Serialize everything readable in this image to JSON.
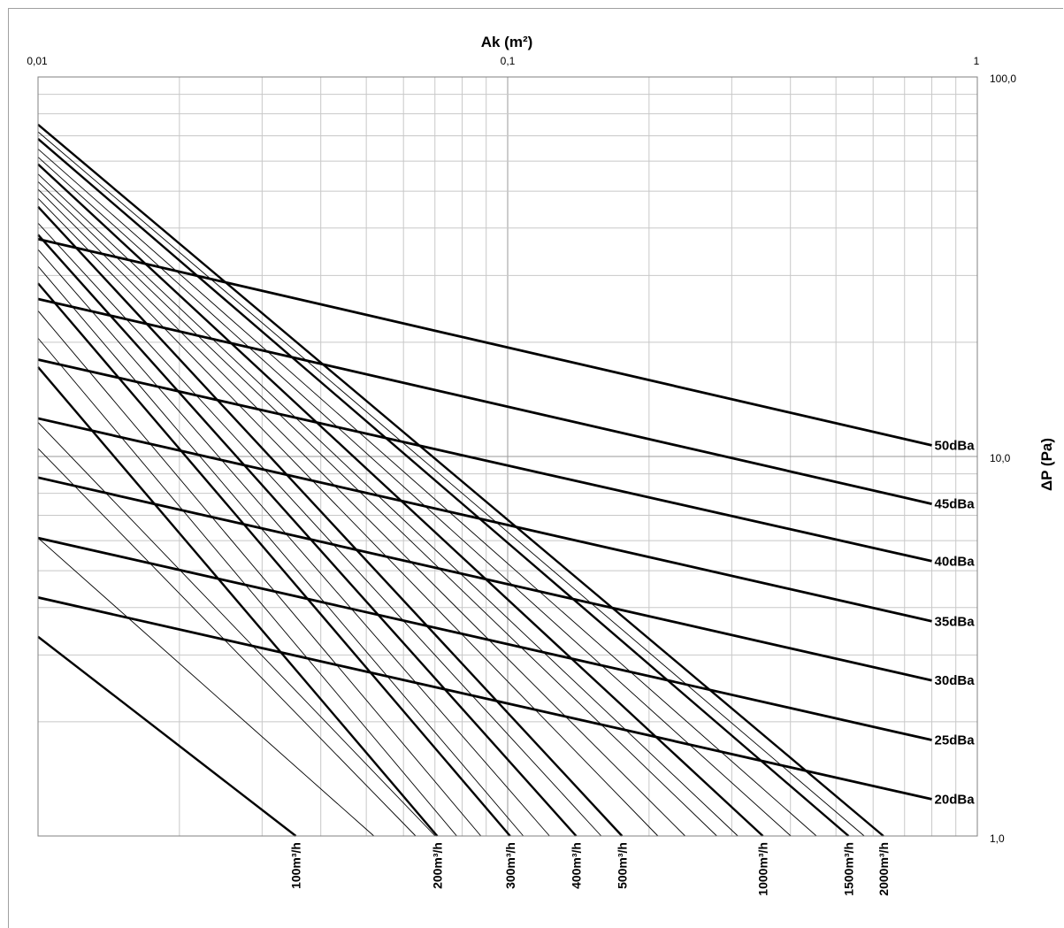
{
  "chart_data": {
    "type": "line",
    "xlabel": "Ak (m²)",
    "ylabel": "ΔP (Pa)",
    "x_scale": "log",
    "y_scale": "log",
    "xlim": [
      0.01,
      1
    ],
    "ylim": [
      1,
      100
    ],
    "x_tick_labels": [
      "0,01",
      "0,1",
      "1"
    ],
    "y_tick_labels": [
      "100,0",
      "10,0",
      "1,0"
    ],
    "grid": true,
    "noise_series": [
      {
        "name": "50dBa",
        "points": [
          [
            0.01,
            37.4
          ],
          [
            0.8,
            10.7
          ]
        ]
      },
      {
        "name": "45dBa",
        "points": [
          [
            0.01,
            26.0
          ],
          [
            0.8,
            7.5
          ]
        ]
      },
      {
        "name": "40dBa",
        "points": [
          [
            0.01,
            18.0
          ],
          [
            0.8,
            5.3
          ]
        ]
      },
      {
        "name": "35dBa",
        "points": [
          [
            0.01,
            12.6
          ],
          [
            0.8,
            3.68
          ]
        ]
      },
      {
        "name": "30dBa",
        "points": [
          [
            0.01,
            8.8
          ],
          [
            0.8,
            2.57
          ]
        ]
      },
      {
        "name": "25dBa",
        "points": [
          [
            0.01,
            6.1
          ],
          [
            0.8,
            1.79
          ]
        ]
      },
      {
        "name": "20dBa",
        "points": [
          [
            0.01,
            4.25
          ],
          [
            0.8,
            1.25
          ]
        ]
      }
    ],
    "flow_series": [
      {
        "name": "100m³/h",
        "points": [
          [
            0.01,
            3.35
          ],
          [
            0.0354,
            1.0
          ]
        ],
        "bold": true,
        "labeled": true
      },
      {
        "name": "",
        "points": [
          [
            0.01,
            6.1
          ],
          [
            0.0519,
            1.0
          ]
        ],
        "bold": false,
        "labeled": false
      },
      {
        "name": "",
        "points": [
          [
            0.01,
            10.5
          ],
          [
            0.0637,
            1.0
          ]
        ],
        "bold": false,
        "labeled": false
      },
      {
        "name": "",
        "points": [
          [
            0.01,
            12.3
          ],
          [
            0.0701,
            1.0
          ]
        ],
        "bold": false,
        "labeled": false
      },
      {
        "name": "200m³/h",
        "points": [
          [
            0.01,
            17.2
          ],
          [
            0.0708,
            1.0
          ]
        ],
        "bold": true,
        "labeled": true
      },
      {
        "name": "",
        "points": [
          [
            0.01,
            20.5
          ],
          [
            0.0779,
            1.0
          ]
        ],
        "bold": false,
        "labeled": false
      },
      {
        "name": "",
        "points": [
          [
            0.01,
            24.2
          ],
          [
            0.0877,
            1.0
          ]
        ],
        "bold": false,
        "labeled": false
      },
      {
        "name": "300m³/h",
        "points": [
          [
            0.01,
            28.6
          ],
          [
            0.1012,
            1.0
          ]
        ],
        "bold": true,
        "labeled": true
      },
      {
        "name": "",
        "points": [
          [
            0.01,
            31.7
          ],
          [
            0.108,
            1.0
          ]
        ],
        "bold": false,
        "labeled": false
      },
      {
        "name": "",
        "points": [
          [
            0.01,
            35.1
          ],
          [
            0.1228,
            1.0
          ]
        ],
        "bold": false,
        "labeled": false
      },
      {
        "name": "400m³/h",
        "points": [
          [
            0.01,
            38.4
          ],
          [
            0.1399,
            1.0
          ]
        ],
        "bold": true,
        "labeled": true
      },
      {
        "name": "",
        "points": [
          [
            0.01,
            41.2
          ],
          [
            0.1582,
            1.0
          ]
        ],
        "bold": false,
        "labeled": false
      },
      {
        "name": "500m³/h",
        "points": [
          [
            0.01,
            45.5
          ],
          [
            0.1752,
            1.0
          ]
        ],
        "bold": true,
        "labeled": true
      },
      {
        "name": "",
        "points": [
          [
            0.01,
            47.9
          ],
          [
            0.2089,
            1.0
          ]
        ],
        "bold": false,
        "labeled": false
      },
      {
        "name": "",
        "points": [
          [
            0.01,
            50.6
          ],
          [
            0.2387,
            1.0
          ]
        ],
        "bold": false,
        "labeled": false
      },
      {
        "name": "",
        "points": [
          [
            0.01,
            53.0
          ],
          [
            0.2788,
            1.0
          ]
        ],
        "bold": false,
        "labeled": false
      },
      {
        "name": "",
        "points": [
          [
            0.01,
            55.5
          ],
          [
            0.3091,
            1.0
          ]
        ],
        "bold": false,
        "labeled": false
      },
      {
        "name": "1000m³/h",
        "points": [
          [
            0.01,
            58.9
          ],
          [
            0.3495,
            1.0
          ]
        ],
        "bold": true,
        "labeled": true
      },
      {
        "name": "",
        "points": [
          [
            0.01,
            61.5
          ],
          [
            0.4008,
            1.0
          ]
        ],
        "bold": false,
        "labeled": false
      },
      {
        "name": "",
        "points": [
          [
            0.01,
            64.6
          ],
          [
            0.4544,
            1.0
          ]
        ],
        "bold": false,
        "labeled": false
      },
      {
        "name": "1500m³/h",
        "points": [
          [
            0.01,
            68.7
          ],
          [
            0.532,
            1.0
          ]
        ],
        "bold": true,
        "labeled": true
      },
      {
        "name": "",
        "points": [
          [
            0.01,
            71.7
          ],
          [
            0.5745,
            1.0
          ]
        ],
        "bold": false,
        "labeled": false
      },
      {
        "name": "2000m³/h",
        "points": [
          [
            0.01,
            74.9
          ],
          [
            0.6311,
            1.0
          ]
        ],
        "bold": true,
        "labeled": true
      }
    ]
  }
}
